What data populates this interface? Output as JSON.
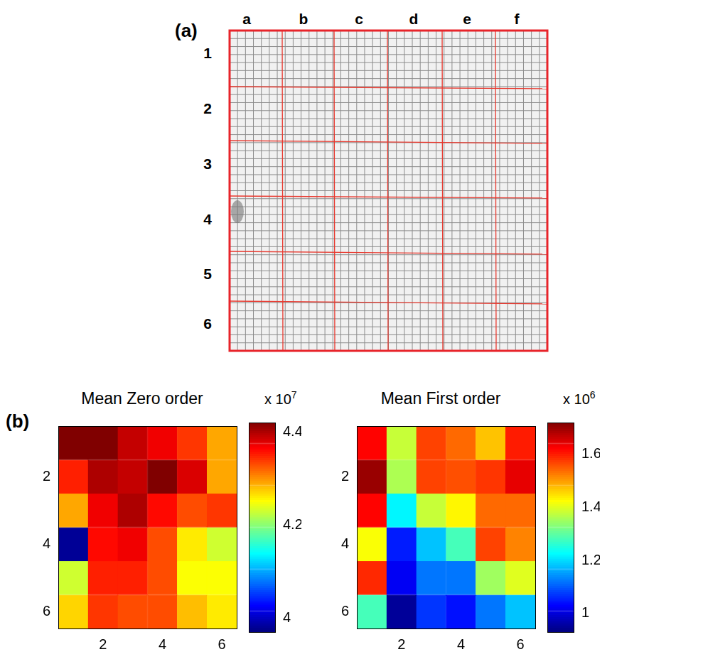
{
  "panel_a": {
    "label": "(a)",
    "column_labels": [
      "a",
      "b",
      "c",
      "d",
      "e",
      "f"
    ],
    "row_labels": [
      "1",
      "2",
      "3",
      "4",
      "5",
      "6"
    ]
  },
  "panel_b": {
    "label": "(b)"
  },
  "chart_data": [
    {
      "type": "heatmap",
      "title": "Mean Zero order",
      "xlim": [
        0.5,
        6.5
      ],
      "xticks": [
        2,
        4,
        6
      ],
      "ylim": [
        0.5,
        6.5
      ],
      "yticks": [
        2,
        4,
        6
      ],
      "cells": [
        [
          4.42,
          4.42,
          4.39,
          4.37,
          4.34,
          4.29
        ],
        [
          4.35,
          4.4,
          4.39,
          4.42,
          4.38,
          4.29
        ],
        [
          4.29,
          4.37,
          4.4,
          4.36,
          4.33,
          4.34
        ],
        [
          3.98,
          4.36,
          4.37,
          4.33,
          4.26,
          4.23
        ],
        [
          4.23,
          4.35,
          4.35,
          4.33,
          4.25,
          4.25
        ],
        [
          4.27,
          4.34,
          4.33,
          4.33,
          4.28,
          4.26
        ]
      ],
      "colorbar_range": [
        3.97,
        4.42
      ],
      "colorbar_ticks": [
        4,
        4.2,
        4.4
      ],
      "colorbar_multiplier": {
        "base": "x 10",
        "exponent": "7"
      }
    },
    {
      "type": "heatmap",
      "title": "Mean First order",
      "xlim": [
        0.5,
        6.5
      ],
      "xticks": [
        2,
        4,
        6
      ],
      "ylim": [
        0.5,
        6.5
      ],
      "yticks": [
        2,
        4,
        6
      ],
      "cells": [
        [
          1.62,
          1.38,
          1.57,
          1.54,
          1.47,
          1.6
        ],
        [
          1.7,
          1.36,
          1.57,
          1.56,
          1.58,
          1.64
        ],
        [
          1.62,
          1.22,
          1.38,
          1.43,
          1.54,
          1.54
        ],
        [
          1.42,
          1.05,
          1.18,
          1.28,
          1.57,
          1.52
        ],
        [
          1.59,
          1.02,
          1.12,
          1.12,
          1.35,
          1.4
        ],
        [
          1.28,
          0.95,
          1.07,
          1.04,
          1.12,
          1.18
        ]
      ],
      "colorbar_range": [
        0.93,
        1.72
      ],
      "colorbar_ticks": [
        1,
        1.2,
        1.4,
        1.6
      ],
      "colorbar_multiplier": {
        "base": "x 10",
        "exponent": "6"
      }
    }
  ]
}
